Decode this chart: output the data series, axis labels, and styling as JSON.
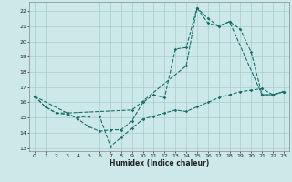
{
  "xlabel": "Humidex (Indice chaleur)",
  "xlim": [
    -0.5,
    23.5
  ],
  "ylim": [
    12.8,
    22.6
  ],
  "yticks": [
    13,
    14,
    15,
    16,
    17,
    18,
    19,
    20,
    21,
    22
  ],
  "xticks": [
    0,
    1,
    2,
    3,
    4,
    5,
    6,
    7,
    8,
    9,
    10,
    11,
    12,
    13,
    14,
    15,
    16,
    17,
    18,
    19,
    20,
    21,
    22,
    23
  ],
  "background_color": "#cce8e8",
  "grid_color": "#aacccc",
  "line_color": "#1a6e6a",
  "line1": {
    "x": [
      0,
      1,
      2,
      3,
      4,
      5,
      6,
      7,
      8,
      9,
      10,
      11,
      12,
      13,
      14,
      15,
      16,
      17,
      18,
      19,
      20,
      21,
      22,
      23
    ],
    "y": [
      16.4,
      15.7,
      15.3,
      15.3,
      14.9,
      14.4,
      14.1,
      14.2,
      14.2,
      14.8,
      16.0,
      16.5,
      16.3,
      19.5,
      19.6,
      22.2,
      21.5,
      21.0,
      21.3,
      20.8,
      19.3,
      16.5,
      16.5,
      16.7
    ]
  },
  "line2": {
    "x": [
      0,
      1,
      2,
      3,
      4,
      5,
      6,
      7,
      8,
      9,
      10,
      11,
      12,
      13,
      14,
      15,
      16,
      17,
      18,
      19,
      20,
      21,
      22,
      23
    ],
    "y": [
      16.4,
      15.7,
      15.3,
      15.2,
      15.0,
      15.1,
      15.1,
      13.1,
      13.7,
      14.3,
      14.9,
      15.1,
      15.3,
      15.5,
      15.4,
      15.7,
      16.0,
      16.3,
      16.5,
      16.7,
      16.8,
      16.9,
      16.5,
      16.7
    ]
  },
  "line3": {
    "x": [
      0,
      3,
      9,
      14,
      15,
      16,
      17,
      18,
      21,
      22,
      23
    ],
    "y": [
      16.4,
      15.3,
      15.5,
      18.4,
      22.2,
      21.2,
      21.0,
      21.3,
      16.5,
      16.5,
      16.7
    ]
  }
}
